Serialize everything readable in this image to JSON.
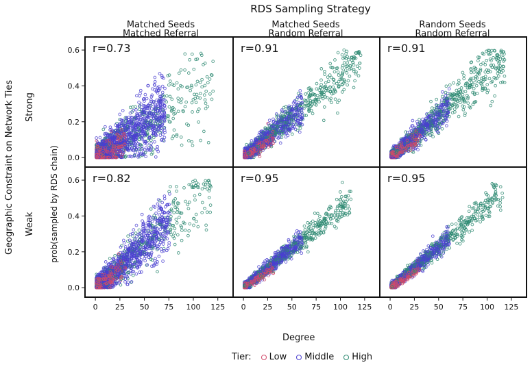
{
  "title": "RDS Sampling Strategy",
  "row_group_label": "Geographic Constraint on Network Ties",
  "y_axis_label": "prob(sampled by RDS chain)",
  "x_axis_label": "Degree",
  "columns": [
    {
      "line1": "Matched Seeds",
      "line2": "Matched Referral"
    },
    {
      "line1": "Matched Seeds",
      "line2": "Random Referral"
    },
    {
      "line1": "Random Seeds",
      "line2": "Random Referral"
    }
  ],
  "rows": [
    {
      "label": "Strong"
    },
    {
      "label": "Weak"
    }
  ],
  "legend": {
    "title": "Tier:",
    "items": [
      {
        "label": "Low",
        "color": "#d14a6a"
      },
      {
        "label": "Middle",
        "color": "#4a3fd0"
      },
      {
        "label": "High",
        "color": "#2e8a72"
      }
    ]
  },
  "chart_data": {
    "type": "scatter",
    "layout": "facet grid 2 rows x 3 columns",
    "xlim": [
      -5,
      135
    ],
    "ylim": [
      -0.03,
      0.65
    ],
    "x_ticks": [
      0,
      25,
      50,
      75,
      100,
      125
    ],
    "y_ticks": [
      0.0,
      0.2,
      0.4,
      0.6
    ],
    "x_tick_labels": [
      "0",
      "25",
      "50",
      "75",
      "100",
      "125"
    ],
    "y_tick_labels": [
      "0.0",
      "0.2",
      "0.4",
      "0.6"
    ],
    "series_colors": {
      "Low": "#d14a6a",
      "Middle": "#4a3fd0",
      "High": "#2e8a72"
    },
    "panels": [
      {
        "row": "Strong",
        "col": 0,
        "r_label": "r=0.73",
        "slope": 0.0036,
        "noise": 0.09,
        "tiers": {
          "Low": {
            "n": 180,
            "xmax": 30
          },
          "Middle": {
            "n": 1300,
            "xmax": 70
          },
          "High": {
            "n": 420,
            "xmax": 120
          }
        }
      },
      {
        "row": "Strong",
        "col": 1,
        "r_label": "r=0.91",
        "slope": 0.0046,
        "noise": 0.045,
        "tiers": {
          "Low": {
            "n": 150,
            "xmax": 30
          },
          "Middle": {
            "n": 700,
            "xmax": 60
          },
          "High": {
            "n": 700,
            "xmax": 120
          }
        }
      },
      {
        "row": "Strong",
        "col": 2,
        "r_label": "r=0.91",
        "slope": 0.0047,
        "noise": 0.045,
        "tiers": {
          "Low": {
            "n": 150,
            "xmax": 30
          },
          "Middle": {
            "n": 650,
            "xmax": 60
          },
          "High": {
            "n": 750,
            "xmax": 118
          }
        }
      },
      {
        "row": "Weak",
        "col": 0,
        "r_label": "r=0.82",
        "slope": 0.0048,
        "noise": 0.07,
        "tiers": {
          "Low": {
            "n": 160,
            "xmax": 30
          },
          "Middle": {
            "n": 1150,
            "xmax": 75
          },
          "High": {
            "n": 420,
            "xmax": 118
          }
        }
      },
      {
        "row": "Weak",
        "col": 1,
        "r_label": "r=0.95",
        "slope": 0.0044,
        "noise": 0.028,
        "tiers": {
          "Low": {
            "n": 150,
            "xmax": 30
          },
          "Middle": {
            "n": 650,
            "xmax": 60
          },
          "High": {
            "n": 650,
            "xmax": 110
          }
        }
      },
      {
        "row": "Weak",
        "col": 2,
        "r_label": "r=0.95",
        "slope": 0.0045,
        "noise": 0.028,
        "tiers": {
          "Low": {
            "n": 150,
            "xmax": 30
          },
          "Middle": {
            "n": 600,
            "xmax": 60
          },
          "High": {
            "n": 650,
            "xmax": 115
          }
        }
      }
    ]
  }
}
